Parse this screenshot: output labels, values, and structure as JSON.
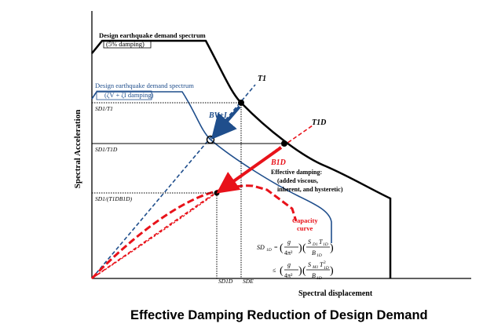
{
  "axes": {
    "y_label": "Spectral Acceleration",
    "x_label": "Spectral displacement"
  },
  "curves": {
    "demand_5pct": {
      "title": "Design earthquake demand spectrum",
      "sub": "(5% damping)"
    },
    "demand_damped": {
      "title": "Design earthquake demand spectrum",
      "sub": "(ζV + ζI damping)"
    },
    "capacity": {
      "line1": "Capacity",
      "line2": "curve"
    }
  },
  "labels": {
    "T1": "T1",
    "T1D": "T1D",
    "BVI": "BV+I",
    "B1D": "B1D",
    "SD1_T1": "SD1/T1",
    "SD1_T1D": "SD1/T1D",
    "SD1_T1D_B1D": "SD1/(T1DB1D)",
    "SD1D": "SD1D",
    "SDE": "SDE"
  },
  "damping_note": {
    "line1": "Effective damping:",
    "line2": "(added viscous,",
    "line3": "inherent, and hysteretic)"
  },
  "caption": "Effective Damping Reduction of Design Demand",
  "colors": {
    "black": "#000000",
    "blue": "#1f4e8c",
    "red": "#e8121a",
    "grey": "#555555"
  }
}
